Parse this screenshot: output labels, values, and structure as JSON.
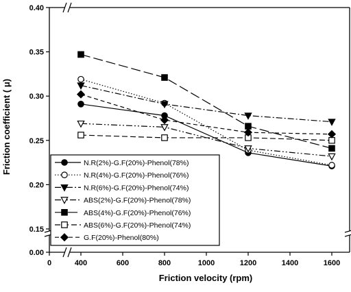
{
  "chart_data": {
    "type": "line",
    "title": "",
    "xlabel": "Friction velocity (rpm)",
    "ylabel": "Friction coefficient ( μ)",
    "x_break": [
      0,
      400
    ],
    "y_break": [
      0.0,
      0.15
    ],
    "xlim": [
      0,
      1600
    ],
    "ylim": [
      0.0,
      0.4
    ],
    "xticks": [
      0,
      400,
      600,
      800,
      1000,
      1200,
      1400,
      1600
    ],
    "yticks": [
      0.0,
      0.15,
      0.2,
      0.25,
      0.3,
      0.35,
      0.4
    ],
    "ytick_labels": [
      "0.00",
      "0.15",
      "0.20",
      "0.25",
      "0.30",
      "0.35",
      "0.40"
    ],
    "legend_position": "lower-left",
    "x": [
      400,
      800,
      1200,
      1600
    ],
    "series": [
      {
        "name": "N.R(2%)-G.F(20%)-Phenol(78%)",
        "marker": "circle-filled",
        "dash": "solid",
        "values": [
          0.291,
          0.278,
          0.236,
          0.221
        ]
      },
      {
        "name": "N.R(4%)-G.F(20%)-Phenol(76%)",
        "marker": "circle-open",
        "dash": "dotted",
        "values": [
          0.319,
          0.292,
          0.239,
          0.222
        ]
      },
      {
        "name": "N.R(6%)-G.F(20%)-Phenol(74%)",
        "marker": "triangle-down-filled",
        "dash": "dash-dot",
        "values": [
          0.312,
          0.291,
          0.278,
          0.271
        ]
      },
      {
        "name": "ABS(2%)-G.F(20%)-Phenol(78%)",
        "marker": "triangle-down-open",
        "dash": "dash-dot-dot",
        "values": [
          0.269,
          0.265,
          0.241,
          0.232
        ]
      },
      {
        "name": "ABS(4%)-G.F(20%)-Phenol(76%)",
        "marker": "square-filled",
        "dash": "long-dash",
        "values": [
          0.347,
          0.321,
          0.266,
          0.241
        ]
      },
      {
        "name": "ABS(6%)-G.F(20%)-Phenol(74%)",
        "marker": "square-open",
        "dash": "medium-dash",
        "values": [
          0.256,
          0.253,
          0.253,
          0.25
        ]
      },
      {
        "name": "G.F(20%)-Phenol(80%)",
        "marker": "diamond-filled",
        "dash": "dash",
        "values": [
          0.302,
          0.273,
          0.259,
          0.257
        ]
      }
    ]
  }
}
